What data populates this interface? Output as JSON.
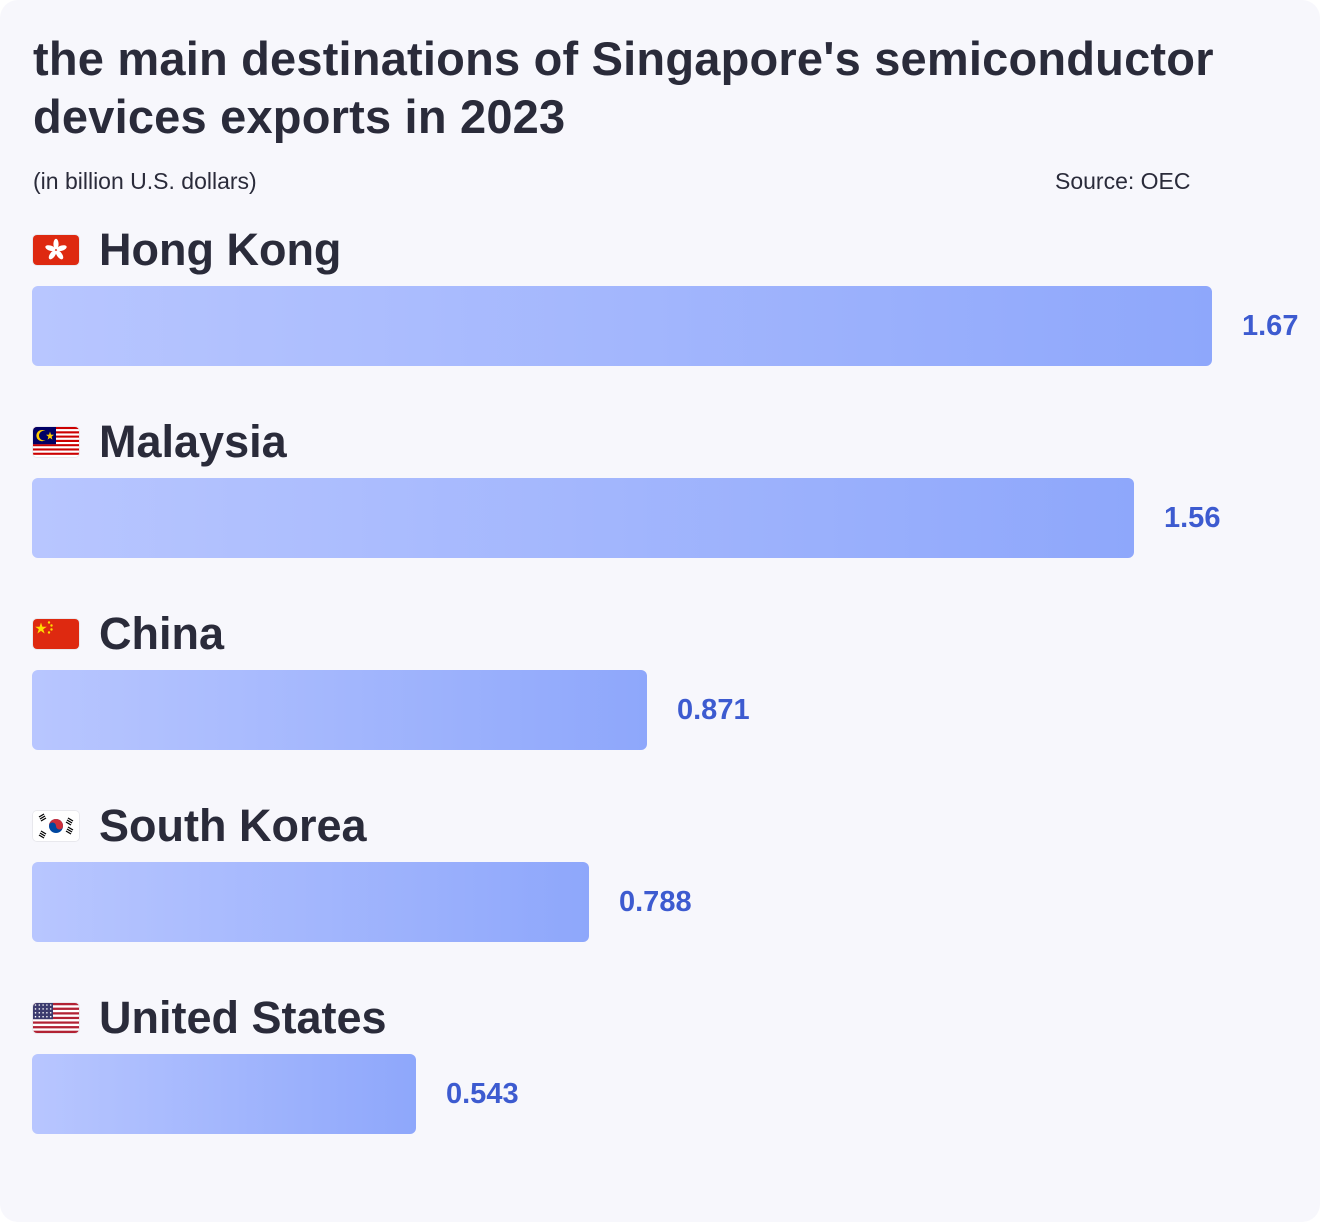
{
  "chart_data": {
    "type": "bar",
    "orientation": "horizontal",
    "title": "the main destinations of Singapore's semiconductor devices exports in 2023",
    "subtitle": "(in billion U.S. dollars)",
    "source": "Source: OEC",
    "categories": [
      "Hong Kong",
      "Malaysia",
      "China",
      "South Korea",
      "United States"
    ],
    "values": [
      1.67,
      1.56,
      0.871,
      0.788,
      0.543
    ],
    "value_labels": [
      "1.67",
      "1.56",
      "0.871",
      "0.788",
      "0.543"
    ],
    "flag_icons": [
      "hong-kong-flag-icon",
      "malaysia-flag-icon",
      "china-flag-icon",
      "south-korea-flag-icon",
      "united-states-flag-icon"
    ],
    "xlim": [
      0,
      1.67
    ],
    "grid": false,
    "legend": "none",
    "colors": {
      "bar_start": "#b8c6ff",
      "bar_end": "#8ea7fb",
      "value_label": "#3d5bd0",
      "text": "#2a2b3a",
      "background": "#f7f7fc"
    }
  }
}
